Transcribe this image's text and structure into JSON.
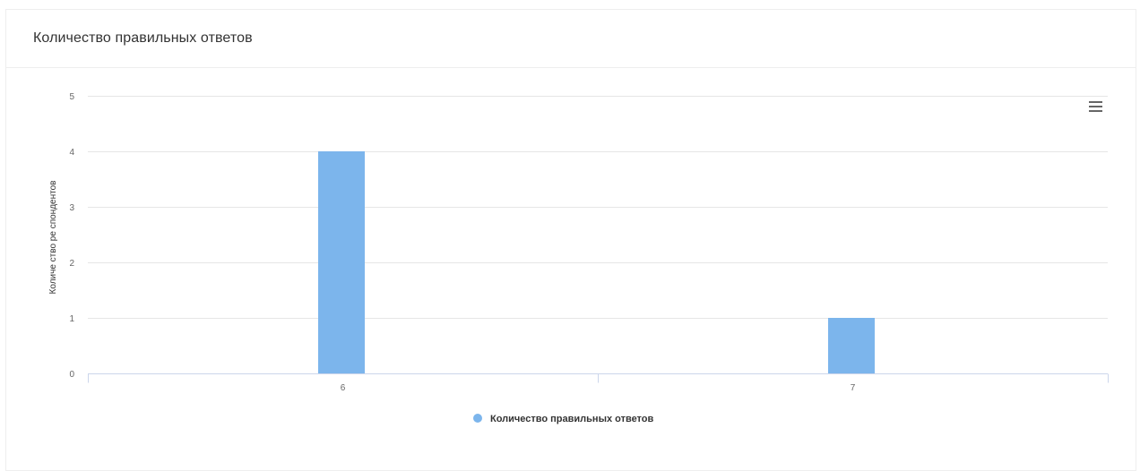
{
  "panel": {
    "title": "Количество правильных ответов"
  },
  "menu": {
    "icon": "hamburger-menu-icon"
  },
  "chart_data": {
    "type": "bar",
    "categories": [
      "6",
      "7"
    ],
    "series": [
      {
        "name": "Количество правильных ответов",
        "values": [
          4,
          1
        ],
        "color": "#7cb5ec"
      }
    ],
    "xlabel": "",
    "ylabel": "Количе ство ре спондентов",
    "ylim": [
      0,
      5
    ],
    "yticks": [
      0,
      1,
      2,
      3,
      4,
      5
    ],
    "grid": true,
    "legend": "bottom-center"
  }
}
